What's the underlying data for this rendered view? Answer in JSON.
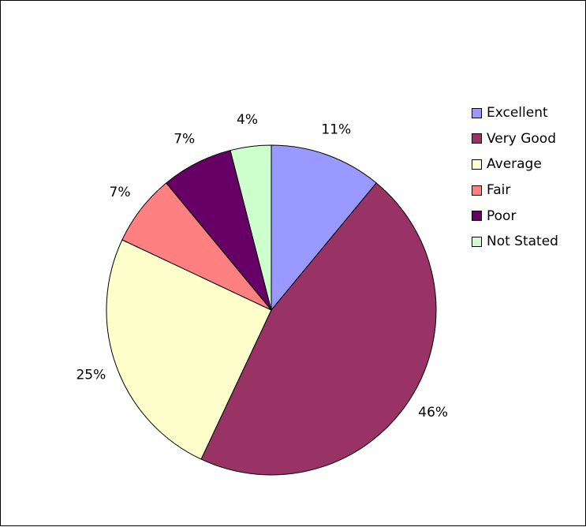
{
  "chart_data": {
    "type": "pie",
    "title": "",
    "slices": [
      {
        "name": "Excellent",
        "value": 11,
        "label": "11%",
        "color": "#9999ff"
      },
      {
        "name": "Very Good",
        "value": 46,
        "label": "46%",
        "color": "#993366"
      },
      {
        "name": "Average",
        "value": 25,
        "label": "25%",
        "color": "#ffffcc"
      },
      {
        "name": "Fair",
        "value": 7,
        "label": "7%",
        "color": "#ff8080"
      },
      {
        "name": "Poor",
        "value": 7,
        "label": "7%",
        "color": "#660066"
      },
      {
        "name": "Not Stated",
        "value": 4,
        "label": "4%",
        "color": "#ccffcc"
      }
    ],
    "start_angle": "12 o'clock",
    "direction": "clockwise",
    "legend": {
      "placement": "right"
    },
    "border_color": "#000000"
  }
}
